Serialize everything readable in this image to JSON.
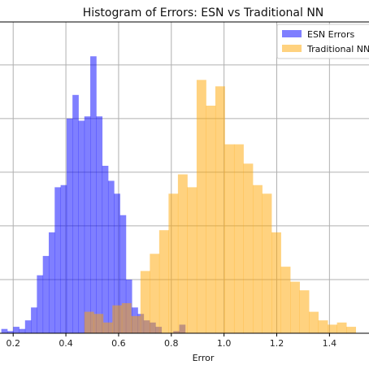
{
  "chart_data": {
    "type": "bar",
    "title": "Histogram of Errors: ESN vs Traditional NN",
    "xlabel": "Error",
    "ylabel": "",
    "xlim": [
      0.15,
      1.55
    ],
    "ylim": [
      0,
      145
    ],
    "x_ticks": [
      0.2,
      0.4,
      0.6,
      0.8,
      1.0,
      1.2,
      1.4
    ],
    "x_tick_labels": [
      "0.2",
      "0.4",
      "0.6",
      "0.8",
      "1.0",
      "1.2",
      "1.4"
    ],
    "y_ticks": [
      25,
      50,
      75,
      100,
      125
    ],
    "grid": true,
    "legend": "top-right",
    "series": [
      {
        "name": "ESN Errors",
        "color": "#0000ff",
        "opacity": 0.5,
        "bin_width": 0.0225,
        "bin_starts": [
          0.155,
          0.1775,
          0.2,
          0.2225,
          0.245,
          0.2675,
          0.29,
          0.3125,
          0.335,
          0.3575,
          0.38,
          0.4025,
          0.425,
          0.4475,
          0.47,
          0.4925,
          0.515,
          0.5375,
          0.56,
          0.5825,
          0.605,
          0.6275,
          0.65,
          0.6725,
          0.695,
          0.7175,
          0.74,
          0.7625,
          0.785,
          0.8075,
          0.83
        ],
        "counts": [
          2,
          1,
          3,
          2,
          6,
          12,
          27,
          36,
          47,
          68,
          69,
          100,
          111,
          99,
          101,
          129,
          101,
          78,
          71,
          65,
          55,
          25,
          12,
          9,
          6,
          5,
          3,
          0,
          0,
          1,
          4
        ]
      },
      {
        "name": "Traditional NN",
        "color": "#ffa500",
        "opacity": 0.5,
        "bin_width": 0.0355,
        "bin_starts": [
          0.47,
          0.5055,
          0.541,
          0.5765,
          0.612,
          0.6475,
          0.683,
          0.7185,
          0.754,
          0.7895,
          0.825,
          0.8605,
          0.896,
          0.9315,
          0.967,
          1.0025,
          1.038,
          1.0735,
          1.109,
          1.1445,
          1.18,
          1.2155,
          1.251,
          1.2865,
          1.322,
          1.3575,
          1.393,
          1.4285,
          1.464,
          1.4995,
          1.535
        ],
        "counts": [
          10,
          9,
          5,
          13,
          14,
          8,
          29,
          37,
          48,
          65,
          74,
          68,
          118,
          106,
          115,
          88,
          88,
          79,
          69,
          65,
          47,
          31,
          24,
          20,
          10,
          6,
          4,
          5,
          3,
          0,
          0
        ]
      }
    ]
  }
}
